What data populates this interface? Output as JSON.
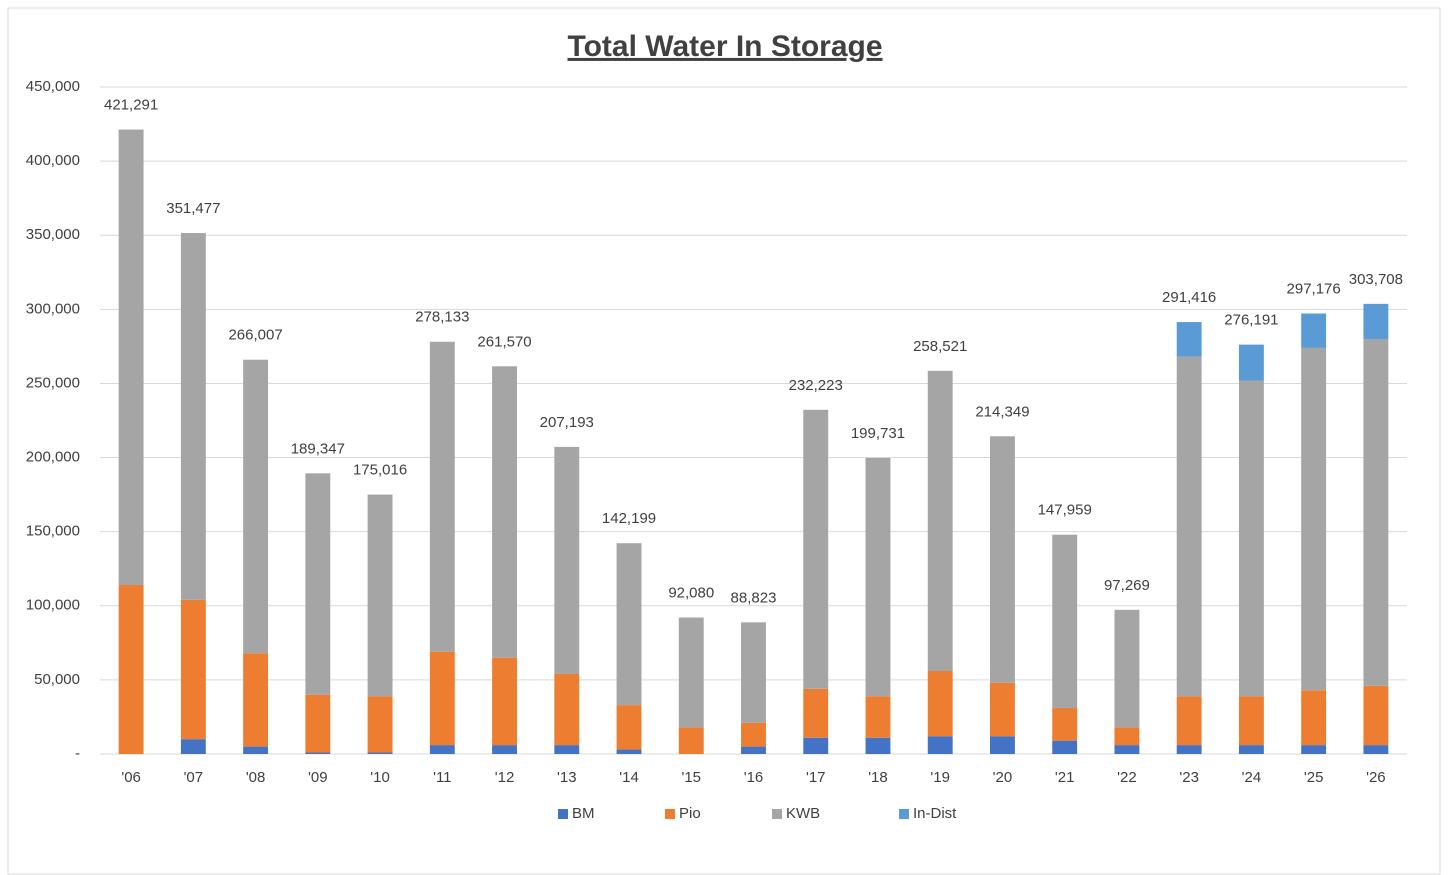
{
  "chart_data": {
    "type": "stacked_bar",
    "title": "Total Water In Storage",
    "categories": [
      "'06",
      "'07",
      "'08",
      "'09",
      "'10",
      "'11",
      "'12",
      "'13",
      "'14",
      "'15",
      "'16",
      "'17",
      "'18",
      "'19",
      "'20",
      "'21",
      "'22",
      "'23",
      "'24",
      "'25",
      "'26"
    ],
    "series": [
      {
        "name": "BM",
        "color": "#4472c4",
        "values": [
          0,
          10000,
          5000,
          1000,
          1000,
          6000,
          6000,
          6000,
          3000,
          0,
          5000,
          11000,
          11000,
          12000,
          12000,
          9000,
          6000,
          6000,
          6000,
          6000,
          6000
        ]
      },
      {
        "name": "Pio",
        "color": "#ed7d31",
        "values": [
          114000,
          94000,
          63000,
          39000,
          38000,
          63000,
          59000,
          48000,
          30000,
          18000,
          16000,
          33000,
          28000,
          44000,
          36000,
          22000,
          12000,
          33000,
          33000,
          37000,
          40000
        ]
      },
      {
        "name": "KWB",
        "color": "#a5a5a5",
        "values": [
          307291,
          247477,
          198007,
          149347,
          136016,
          209133,
          196570,
          153193,
          109199,
          74080,
          67823,
          188223,
          160731,
          202521,
          166349,
          116959,
          79269,
          229000,
          213000,
          231000,
          234000
        ]
      },
      {
        "name": "In-Dist",
        "color": "#5b9bd5",
        "values": [
          null,
          null,
          null,
          null,
          null,
          null,
          null,
          null,
          null,
          null,
          null,
          null,
          null,
          null,
          null,
          null,
          null,
          23416,
          24191,
          23176,
          23708
        ]
      }
    ],
    "totals": {
      "values": [
        421291,
        351477,
        266007,
        189347,
        175016,
        278133,
        261570,
        207193,
        142199,
        92080,
        88823,
        232223,
        199731,
        258521,
        214349,
        147959,
        97269,
        291416,
        276191,
        297176,
        303708
      ],
      "value_labels": [
        "421,291",
        "351,477",
        "266,007",
        "189,347",
        "175,016",
        "278,133",
        "261,570",
        "207,193",
        "142,199",
        "92,080",
        "88,823",
        "232,223",
        "199,731",
        "258,521",
        "214,349",
        "147,959",
        "97,269",
        "291,416",
        "276,191",
        "297,176",
        "303,708"
      ]
    },
    "ylim": [
      0,
      450000
    ],
    "yticks": [
      {
        "value": 0,
        "label": "-"
      },
      {
        "value": 50000,
        "label": "50,000"
      },
      {
        "value": 100000,
        "label": "100,000"
      },
      {
        "value": 150000,
        "label": "150,000"
      },
      {
        "value": 200000,
        "label": "200,000"
      },
      {
        "value": 250000,
        "label": "250,000"
      },
      {
        "value": 300000,
        "label": "300,000"
      },
      {
        "value": 350000,
        "label": "350,000"
      },
      {
        "value": 400000,
        "label": "400,000"
      },
      {
        "value": 450000,
        "label": "450,000"
      }
    ],
    "grid": true,
    "legend": "bottom"
  }
}
